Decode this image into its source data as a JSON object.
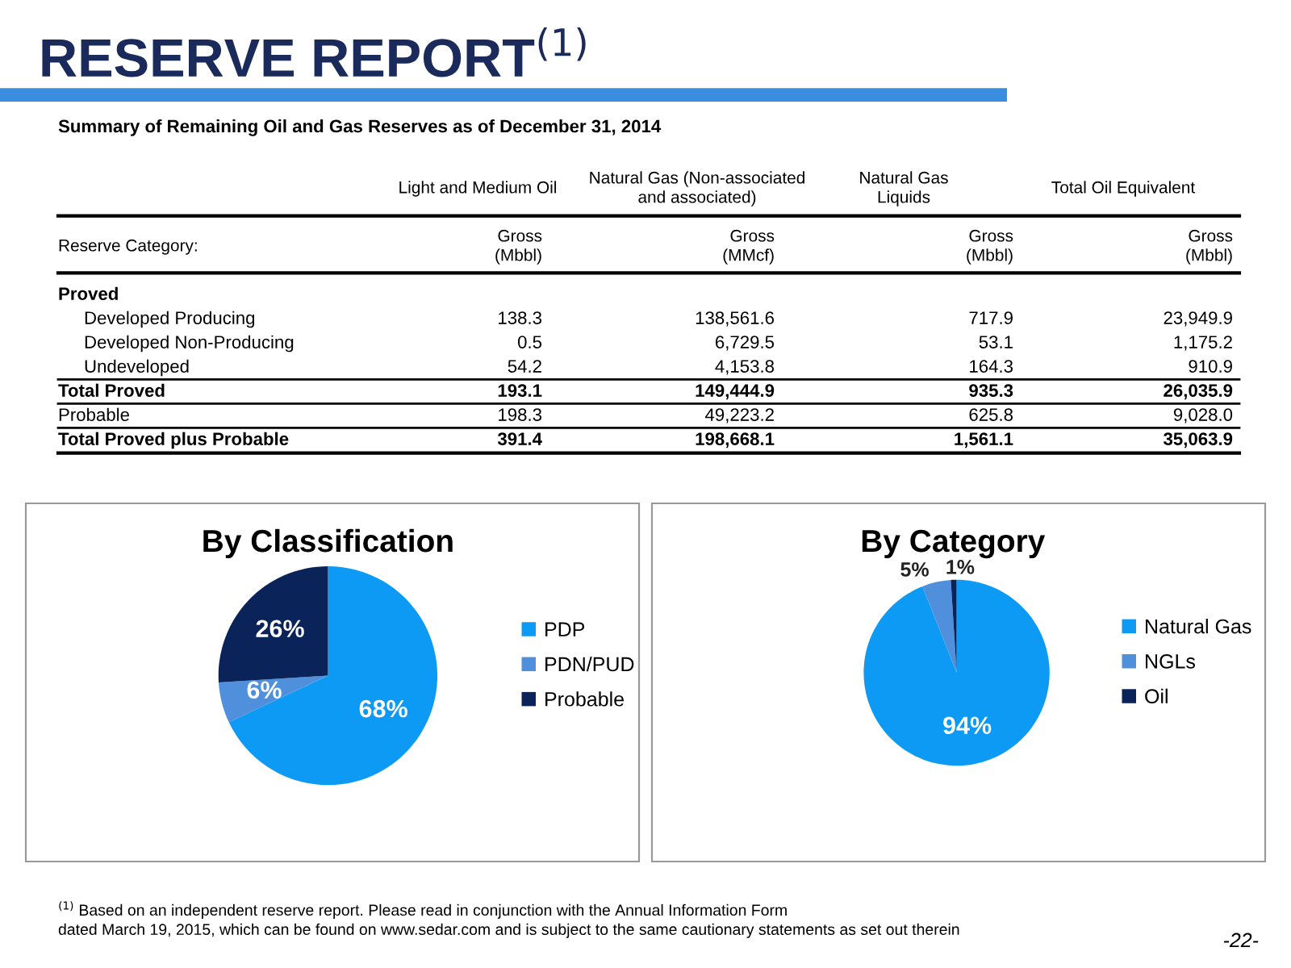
{
  "chart_data": [
    {
      "type": "other",
      "title": "RESERVE REPORT$^{(1)}$",
      "subtitle": "Summary of Remaining Oil and Gas Reserves as of December 31, 2014",
      "annotations": [
        null,
        "Light and Medium Oil",
        "Natural Gas (Non-associated\nand associated)",
        "Natural Gas\nLiquids",
        "Total Oil Equivalent",
        "Reserve Category:",
        "Gross\n(Mbbl)",
        "Gross\n(MMcf)",
        "Gross\n(Mbbl)",
        "Gross\n(Mbbl)",
        "Proved",
        null,
        null,
        null,
        null,
        "Developed Producing",
        "138.3",
        "138,561.6",
        "717.9",
        "23,949.9",
        "Developed Non-Producing",
        "0.5",
        "6,729.5",
        "53.1",
        "1,175.2",
        "Undeveloped",
        "54.2",
        "4,153.8",
        "164.3",
        "910.9",
        "Total Proved",
        "193.1",
        "149,444.9",
        "935.3",
        "26,035.9",
        "Probable",
        "198.3",
        "49,223.2",
        "625.8",
        "9,028.0",
        "Total Proved plus Probable",
        "391.4",
        "198,668.1",
        "1,561.1",
        "35,063.9"
      ]
    },
    {
      "type": "pie",
      "title": "By Classification",
      "categories": [
        "PDP",
        "PDN/PUD",
        "Probable"
      ],
      "values": [
        68,
        6,
        26
      ],
      "colors": [
        "#0d9af5",
        "#4f8fdc",
        "#0a2459"
      ],
      "value_labels": [
        "68%",
        "6%",
        "26%"
      ],
      "legend": "right"
    },
    {
      "type": "pie",
      "title": "By Category",
      "categories": [
        "Natural Gas",
        "NGLs",
        "Oil"
      ],
      "values": [
        94,
        5,
        1
      ],
      "colors": [
        "#0d9af5",
        "#4f8fdc",
        "#0a2459"
      ],
      "value_labels": [
        "94%",
        "5%",
        "1%"
      ],
      "legend": "right",
      "annotations": [
        "$^{(1)}$ Based on an independent reserve report. Please read in conjunction with the Annual Information Form\ndated March 19, 2015, which can be found on www.sedar.com and is subject to the same cautionary statements as set out therein",
        "-22-"
      ]
    }
  ]
}
